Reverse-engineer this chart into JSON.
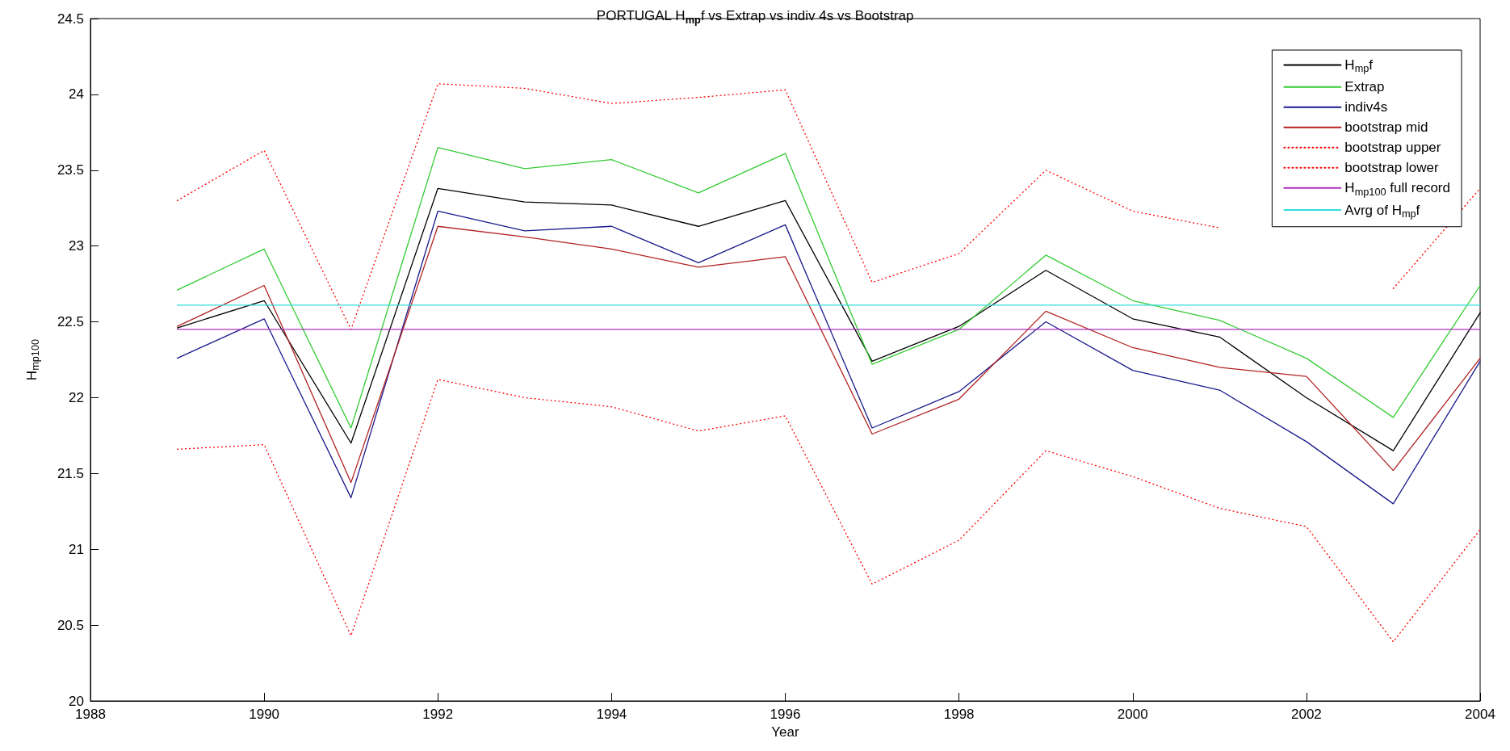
{
  "chart_data": {
    "type": "line",
    "title": "PORTUGAL H$_{mp}$f vs Extrap vs indiv 4s vs Bootstrap",
    "xlabel": "Year",
    "ylabel": "H$_{mp100}$",
    "x": [
      1989,
      1990,
      1991,
      1992,
      1993,
      1994,
      1995,
      1996,
      1997,
      1998,
      1999,
      2000,
      2001,
      2002,
      2003,
      2004
    ],
    "series": [
      {
        "name": "H$_{mp}$f",
        "color": "#000000",
        "values": [
          22.46,
          22.64,
          21.7,
          23.38,
          23.29,
          23.27,
          23.13,
          23.3,
          22.24,
          22.47,
          22.84,
          22.52,
          22.4,
          22.0,
          21.65,
          22.56
        ]
      },
      {
        "name": "Extrap",
        "color": "#33cc33",
        "values": [
          22.71,
          22.98,
          21.8,
          23.65,
          23.51,
          23.57,
          23.35,
          23.61,
          22.22,
          22.45,
          22.94,
          22.64,
          22.51,
          22.26,
          21.87,
          22.74
        ]
      },
      {
        "name": "indiv4s",
        "color": "#1a1a8c",
        "values": [
          22.26,
          22.52,
          21.34,
          23.23,
          23.1,
          23.13,
          22.89,
          23.14,
          21.8,
          22.04,
          22.5,
          22.18,
          22.05,
          21.71,
          21.3,
          22.24
        ]
      },
      {
        "name": "bootstrap mid",
        "color": "#b22222",
        "values": [
          22.47,
          22.74,
          21.44,
          23.13,
          23.06,
          22.98,
          22.86,
          22.93,
          21.76,
          21.99,
          22.57,
          22.33,
          22.2,
          22.14,
          21.52,
          22.26
        ]
      },
      {
        "name": "bootstrap upper",
        "color": "#ff0000",
        "line_style": "dotted",
        "values": [
          23.3,
          23.63,
          22.45,
          24.07,
          24.04,
          23.94,
          23.98,
          24.03,
          22.76,
          22.95,
          23.5,
          23.23,
          23.12,
          null,
          22.72,
          23.38
        ]
      },
      {
        "name": "bootstrap lower",
        "color": "#ff0000",
        "line_style": "dotted",
        "values": [
          21.66,
          21.69,
          20.43,
          22.12,
          22.0,
          21.94,
          21.78,
          21.88,
          20.77,
          21.06,
          21.65,
          21.48,
          21.27,
          21.15,
          20.39,
          21.13
        ]
      },
      {
        "name": "H$_{mp100}$ full record",
        "color": "#b030c0",
        "values": [
          22.45,
          22.45,
          22.45,
          22.45,
          22.45,
          22.45,
          22.45,
          22.45,
          22.45,
          22.45,
          22.45,
          22.45,
          22.45,
          22.45,
          22.45,
          22.45
        ]
      },
      {
        "name": "Avrg of H$_{mp}$f",
        "color": "#33dddd",
        "values": [
          22.61,
          22.61,
          22.61,
          22.61,
          22.61,
          22.61,
          22.61,
          22.61,
          22.61,
          22.61,
          22.61,
          22.61,
          22.61,
          22.61,
          22.61,
          22.61
        ]
      }
    ],
    "xlim": [
      1988,
      2004
    ],
    "xticks": [
      1988,
      1990,
      1992,
      1994,
      1996,
      1998,
      2000,
      2002,
      2004
    ],
    "ylim": [
      20,
      24.5
    ],
    "yticks": [
      20,
      20.5,
      21,
      21.5,
      22,
      22.5,
      23,
      23.5,
      24,
      24.5
    ],
    "grid": false,
    "legend": "top right",
    "marker": "none",
    "line_style": "solid"
  }
}
